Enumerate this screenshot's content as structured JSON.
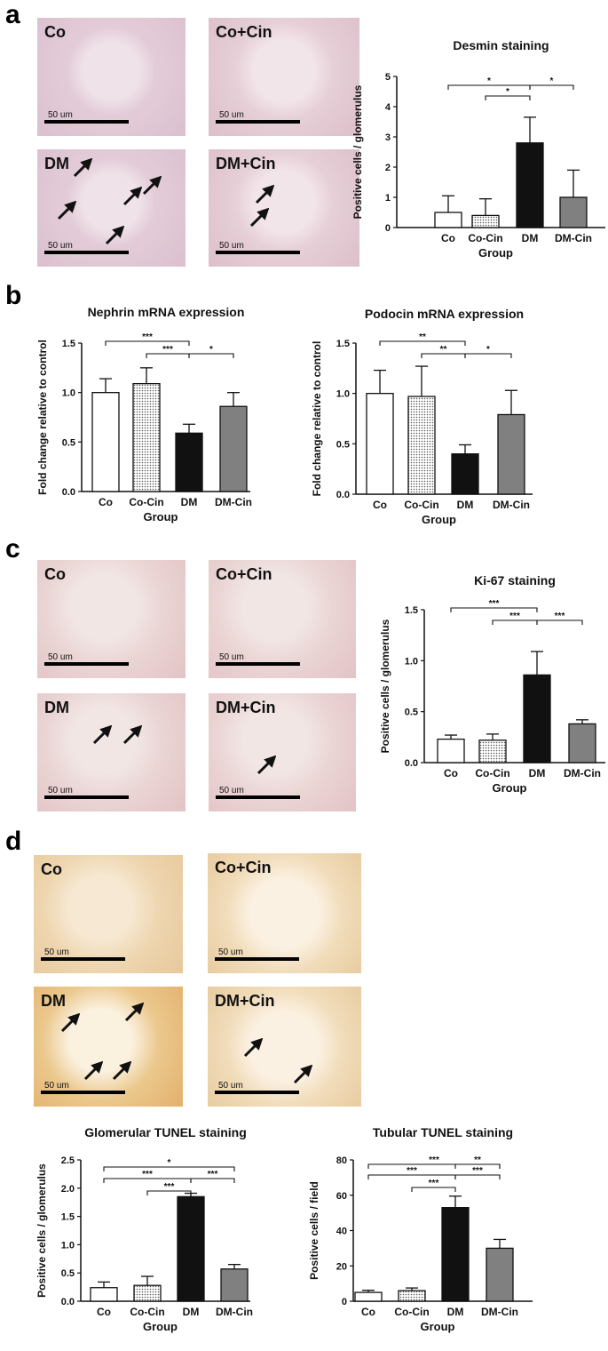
{
  "panels": {
    "a": {
      "letter": "a"
    },
    "b": {
      "letter": "b"
    },
    "c": {
      "letter": "c"
    },
    "d": {
      "letter": "d"
    }
  },
  "micrographs": {
    "a": [
      {
        "label": "Co",
        "scale": "50 um"
      },
      {
        "label": "Co+Cin",
        "scale": "50 um"
      },
      {
        "label": "DM",
        "scale": "50 um"
      },
      {
        "label": "DM+Cin",
        "scale": "50 um"
      }
    ],
    "c": [
      {
        "label": "Co",
        "scale": "50 um"
      },
      {
        "label": "Co+Cin",
        "scale": "50 um"
      },
      {
        "label": "DM",
        "scale": "50 um"
      },
      {
        "label": "DM+Cin",
        "scale": "50 um"
      }
    ],
    "d": [
      {
        "label": "Co",
        "scale": "50 um"
      },
      {
        "label": "Co+Cin",
        "scale": "50 um"
      },
      {
        "label": "DM",
        "scale": "50 um"
      },
      {
        "label": "DM+Cin",
        "scale": "50 um"
      }
    ]
  },
  "colors": {
    "co": "#ffffff",
    "dm": "#111111",
    "dmcin": "#808080",
    "cocin": "#c8c8c8"
  },
  "chart_data": [
    {
      "id": "desmin",
      "type": "bar",
      "title": "Desmin staining",
      "xlabel": "Group",
      "ylabel": "Positive cells / glomerulus",
      "categories": [
        "Co",
        "Co-Cin",
        "DM",
        "DM-Cin"
      ],
      "values": [
        0.5,
        0.4,
        2.8,
        1.0
      ],
      "errors": [
        0.55,
        0.55,
        0.85,
        0.9
      ],
      "ylim": [
        0,
        5
      ],
      "yticks": [
        "0",
        "1",
        "2",
        "3",
        "4",
        "5"
      ],
      "sig": [
        {
          "from": 0,
          "to": 2,
          "label": "*"
        },
        {
          "from": 1,
          "to": 2,
          "label": "*"
        },
        {
          "from": 2,
          "to": 3,
          "label": "*"
        }
      ]
    },
    {
      "id": "nephrin",
      "type": "bar",
      "title": "Nephrin mRNA expression",
      "xlabel": "Group",
      "ylabel": "Fold change relative to control",
      "categories": [
        "Co",
        "Co-Cin",
        "DM",
        "DM-Cin"
      ],
      "values": [
        1.0,
        1.09,
        0.59,
        0.86
      ],
      "errors": [
        0.14,
        0.16,
        0.09,
        0.14
      ],
      "ylim": [
        0,
        1.5
      ],
      "yticks": [
        "0.0",
        "0.5",
        "1.0",
        "1.5"
      ],
      "sig": [
        {
          "from": 0,
          "to": 2,
          "label": "***"
        },
        {
          "from": 1,
          "to": 2,
          "label": "***"
        },
        {
          "from": 2,
          "to": 3,
          "label": "*"
        }
      ]
    },
    {
      "id": "podocin",
      "type": "bar",
      "title": "Podocin mRNA expression",
      "xlabel": "Group",
      "ylabel": "Fold change relative to control",
      "categories": [
        "Co",
        "Co-Cin",
        "DM",
        "DM-Cin"
      ],
      "values": [
        1.0,
        0.97,
        0.4,
        0.79
      ],
      "errors": [
        0.23,
        0.3,
        0.09,
        0.24
      ],
      "ylim": [
        0,
        1.5
      ],
      "yticks": [
        "0.0",
        "0.5",
        "1.0",
        "1.5"
      ],
      "sig": [
        {
          "from": 0,
          "to": 2,
          "label": "**"
        },
        {
          "from": 1,
          "to": 2,
          "label": "**"
        },
        {
          "from": 2,
          "to": 3,
          "label": "*"
        }
      ]
    },
    {
      "id": "ki67",
      "type": "bar",
      "title": "Ki-67 staining",
      "xlabel": "Group",
      "ylabel": "Positive cells / glomerulus",
      "categories": [
        "Co",
        "Co-Cin",
        "DM",
        "DM-Cin"
      ],
      "values": [
        0.23,
        0.22,
        0.86,
        0.38
      ],
      "errors": [
        0.04,
        0.06,
        0.23,
        0.04
      ],
      "ylim": [
        0,
        1.5
      ],
      "yticks": [
        "0.0",
        "0.5",
        "1.0",
        "1.5"
      ],
      "sig": [
        {
          "from": 0,
          "to": 2,
          "label": "***"
        },
        {
          "from": 1,
          "to": 2,
          "label": "***"
        },
        {
          "from": 2,
          "to": 3,
          "label": "***"
        }
      ]
    },
    {
      "id": "glomtunel",
      "type": "bar",
      "title": "Glomerular TUNEL staining",
      "xlabel": "Group",
      "ylabel": "Positive cells / glomerulus",
      "categories": [
        "Co",
        "Co-Cin",
        "DM",
        "DM-Cin"
      ],
      "values": [
        0.24,
        0.28,
        1.85,
        0.57
      ],
      "errors": [
        0.1,
        0.16,
        0.06,
        0.08
      ],
      "ylim": [
        0,
        2.5
      ],
      "yticks": [
        "0.0",
        "0.5",
        "1.0",
        "1.5",
        "2.0",
        "2.5"
      ],
      "sig": [
        {
          "from": 0,
          "to": 3,
          "label": "*"
        },
        {
          "from": 0,
          "to": 2,
          "label": "***"
        },
        {
          "from": 2,
          "to": 3,
          "label": "***"
        },
        {
          "from": 1,
          "to": 2,
          "label": "***"
        }
      ]
    },
    {
      "id": "tubtunel",
      "type": "bar",
      "title": "Tubular TUNEL staining",
      "xlabel": "Group",
      "ylabel": "Positive cells / field",
      "categories": [
        "Co",
        "Co-Cin",
        "DM",
        "DM-Cin"
      ],
      "values": [
        5,
        6,
        53,
        30
      ],
      "errors": [
        1.2,
        1.5,
        6.5,
        5
      ],
      "ylim": [
        0,
        80
      ],
      "yticks": [
        "0",
        "20",
        "40",
        "60",
        "80"
      ],
      "sig": [
        {
          "from": 0,
          "to": 3,
          "label": "***"
        },
        {
          "from": 0,
          "to": 2,
          "label": "***"
        },
        {
          "from": 2,
          "to": 3,
          "label": "**"
        },
        {
          "from": 2,
          "to": 3,
          "label": "***"
        },
        {
          "from": 1,
          "to": 2,
          "label": "***"
        }
      ]
    }
  ]
}
